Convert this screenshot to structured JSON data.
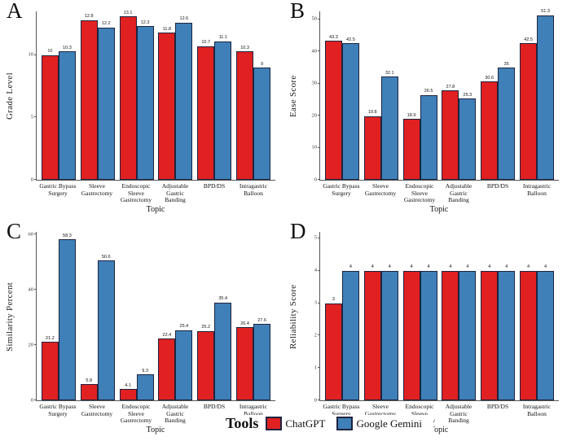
{
  "figure_title": "",
  "colors": {
    "chatgpt_red": "#e02021",
    "gemini_blue": "#3f80b8",
    "bar_edge": "#1d2440",
    "axis": "#555555"
  },
  "legend": {
    "title": "Tools",
    "items": [
      {
        "label": "ChatGPT",
        "color": "#e02021"
      },
      {
        "label": "Google Gemini",
        "color": "#3f80b8"
      }
    ]
  },
  "categories_lines": [
    [
      "Gastric Bypass",
      "Surgery"
    ],
    [
      "Sleeve",
      "Gastrectomy"
    ],
    [
      "Endoscopic",
      "Sleeve",
      "Gastrectomy"
    ],
    [
      "Adjustable",
      "Gastric Banding"
    ],
    [
      "BPD/DS"
    ],
    [
      "Intragastric",
      "Balloon"
    ]
  ],
  "chart_data": [
    {
      "panel": "A",
      "type": "bar",
      "title": "",
      "ylabel": "Grade Level",
      "xlabel": "Topic",
      "yticks": [
        0,
        5,
        10
      ],
      "ylim": [
        0,
        13.5
      ],
      "categories": [
        "Gastric Bypass Surgery",
        "Sleeve Gastrectomy",
        "Endoscopic Sleeve Gastrectomy",
        "Adjustable Gastric Banding",
        "BPD/DS",
        "Intragastric Balloon"
      ],
      "series": [
        {
          "name": "ChatGPT",
          "values": [
            10,
            12.8,
            13.1,
            11.8,
            10.7,
            10.3
          ]
        },
        {
          "name": "Google Gemini",
          "values": [
            10.3,
            12.2,
            12.3,
            12.6,
            11.1,
            9
          ]
        }
      ]
    },
    {
      "panel": "B",
      "type": "bar",
      "title": "",
      "ylabel": "Ease Score",
      "xlabel": "Topic",
      "yticks": [
        0,
        10,
        20,
        30,
        40,
        50
      ],
      "ylim": [
        0,
        52.5
      ],
      "categories": [
        "Gastric Bypass Surgery",
        "Sleeve Gastrectomy",
        "Endoscopic Sleeve Gastrectomy",
        "Adjustable Gastric Banding",
        "BPD/DS",
        "Intragastric Balloon"
      ],
      "series": [
        {
          "name": "ChatGPT",
          "values": [
            43.3,
            19.8,
            18.9,
            27.8,
            30.6,
            42.5
          ]
        },
        {
          "name": "Google Gemini",
          "values": [
            42.5,
            32.1,
            26.5,
            25.3,
            35,
            51.3
          ]
        }
      ]
    },
    {
      "panel": "C",
      "type": "bar",
      "title": "",
      "ylabel": "Similarity Percent",
      "xlabel": "Topic",
      "yticks": [
        0,
        20,
        40,
        60
      ],
      "ylim": [
        0,
        61
      ],
      "categories": [
        "Gastric Bypass Surgery",
        "Sleeve Gastrectomy",
        "Endoscopic Sleeve Gastrectomy",
        "Adjustable Gastric Banding",
        "BPD/DS",
        "Intragastric Balloon"
      ],
      "series": [
        {
          "name": "ChatGPT",
          "values": [
            21.2,
            5.8,
            4.1,
            22.4,
            25.2,
            26.4
          ]
        },
        {
          "name": "Google Gemini",
          "values": [
            58.3,
            50.6,
            9.3,
            25.4,
            35.4,
            27.6
          ]
        }
      ]
    },
    {
      "panel": "D",
      "type": "bar",
      "title": "",
      "ylabel": "Reliability Score",
      "xlabel": "Topic",
      "yticks": [
        0,
        1,
        2,
        3,
        4,
        5
      ],
      "ylim": [
        0,
        5.2
      ],
      "categories": [
        "Gastric Bypass Surgery",
        "Sleeve Gastrectomy",
        "Endoscopic Sleeve Gastrectomy",
        "Adjustable Gastric Banding",
        "BPD/DS",
        "Intragastric Balloon"
      ],
      "series": [
        {
          "name": "ChatGPT",
          "values": [
            3,
            4,
            4,
            4,
            4,
            4
          ]
        },
        {
          "name": "Google Gemini",
          "values": [
            4,
            4,
            4,
            4,
            4,
            4
          ]
        }
      ]
    }
  ]
}
